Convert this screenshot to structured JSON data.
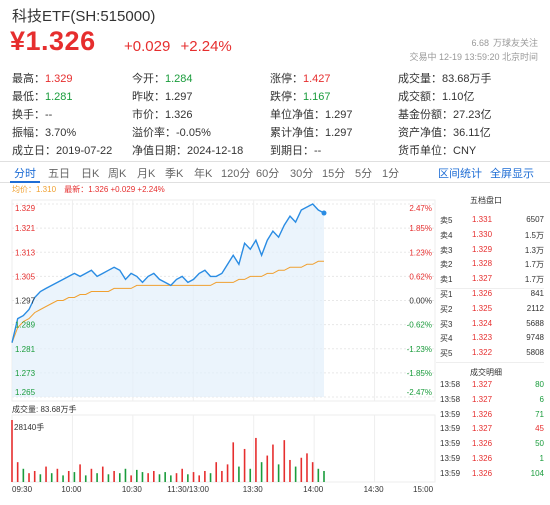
{
  "header": {
    "title": "科技ETF(SH:515000)",
    "price": "¥1.326",
    "change": "+0.029",
    "change_pct": "+2.24%",
    "followers": "6.68",
    "followers_label": "万球友关注",
    "time_info": "交易中 12-19 13:59:20 北京时间"
  },
  "stats": [
    [
      {
        "label": "最高：",
        "value": "1.329",
        "color": "red"
      },
      {
        "label": "今开：",
        "value": "1.284",
        "color": "green"
      },
      {
        "label": "涨停：",
        "value": "1.427",
        "color": "red"
      },
      {
        "label": "成交量：",
        "value": "83.68万手",
        "color": "dark"
      }
    ],
    [
      {
        "label": "最低：",
        "value": "1.281",
        "color": "green"
      },
      {
        "label": "昨收：",
        "value": "1.297",
        "color": "dark"
      },
      {
        "label": "跌停：",
        "value": "1.167",
        "color": "green"
      },
      {
        "label": "成交额：",
        "value": "1.10亿",
        "color": "dark"
      }
    ],
    [
      {
        "label": "换手：",
        "value": "--",
        "color": "dark"
      },
      {
        "label": "市价：",
        "value": "1.326",
        "color": "dark"
      },
      {
        "label": "单位净值：",
        "value": "1.297",
        "color": "dark"
      },
      {
        "label": "基金份额：",
        "value": "27.23亿",
        "color": "dark"
      }
    ],
    [
      {
        "label": "振幅：",
        "value": "3.70%",
        "color": "dark"
      },
      {
        "label": "溢价率：",
        "value": "-0.05%",
        "color": "dark"
      },
      {
        "label": "累计净值：",
        "value": "1.297",
        "color": "dark"
      },
      {
        "label": "资产净值：",
        "value": "36.11亿",
        "color": "dark"
      }
    ],
    [
      {
        "label": "成立日：",
        "value": "2019-07-22",
        "color": "dark"
      },
      {
        "label": "净值日期：",
        "value": "2024-12-18",
        "color": "dark"
      },
      {
        "label": "到期日：",
        "value": "--",
        "color": "dark"
      },
      {
        "label": "货币单位：",
        "value": "CNY",
        "color": "dark"
      }
    ]
  ],
  "tabs": [
    "分时",
    "五日",
    "日K",
    "周K",
    "月K",
    "季K",
    "年K",
    "120分",
    "60分",
    "30分",
    "15分",
    "5分",
    "1分"
  ],
  "tab_links": [
    "区间统计",
    "全屏显示"
  ],
  "legend": {
    "avg": "均价：1.310",
    "latest": "最新：1.326 +0.029 +2.24%"
  },
  "chart_data": {
    "type": "line",
    "y_ticks": [
      "1.329",
      "1.321",
      "1.313",
      "1.305",
      "1.297",
      "1.289",
      "1.281",
      "1.273",
      "1.265"
    ],
    "pct_ticks": [
      "2.47%",
      "1.85%",
      "1.23%",
      "0.62%",
      "0.00%",
      "-0.62%",
      "-1.23%",
      "-1.85%",
      "-2.47%"
    ],
    "ylim": [
      1.265,
      1.329
    ],
    "prev_close": 1.297,
    "x_ticks": [
      "09:30",
      "10:00",
      "10:30",
      "11:30/13:00",
      "13:30",
      "14:00",
      "14:30",
      "15:00"
    ],
    "series": [
      {
        "values": [
          1.283,
          1.291,
          1.292,
          1.294,
          1.298,
          1.3,
          1.301,
          1.302,
          1.303,
          1.304,
          1.305,
          1.306,
          1.305,
          1.306,
          1.307,
          1.305,
          1.306,
          1.307,
          1.308,
          1.307,
          1.304,
          1.306,
          1.305,
          1.303,
          1.305,
          1.306,
          1.304,
          1.303,
          1.302,
          1.304,
          1.305,
          1.303,
          1.304,
          1.306,
          1.307,
          1.305,
          1.305,
          1.306,
          1.309,
          1.312,
          1.309,
          1.316,
          1.314,
          1.317,
          1.312,
          1.317,
          1.32,
          1.318,
          1.322,
          1.325,
          1.323,
          1.327,
          1.328,
          1.329,
          1.327,
          1.326
        ]
      },
      {
        "values": [
          1.283,
          1.288,
          1.29,
          1.291,
          1.293,
          1.294,
          1.295,
          1.296,
          1.297,
          1.297,
          1.298,
          1.298,
          1.299,
          1.299,
          1.3,
          1.3,
          1.3,
          1.3,
          1.301,
          1.301,
          1.301,
          1.301,
          1.302,
          1.302,
          1.302,
          1.302,
          1.302,
          1.302,
          1.302,
          1.302,
          1.302,
          1.302,
          1.302,
          1.302,
          1.302,
          1.302,
          1.303,
          1.303,
          1.303,
          1.303,
          1.304,
          1.304,
          1.305,
          1.305,
          1.305,
          1.306,
          1.306,
          1.307,
          1.307,
          1.308,
          1.308,
          1.308,
          1.309,
          1.309,
          1.31,
          1.31
        ]
      }
    ],
    "volume_label": "成交量: 83.68万手",
    "volume_max_label": "28140手",
    "volume_max": 28140,
    "volumes": [
      28140,
      9000,
      6000,
      4000,
      5000,
      3500,
      7000,
      4000,
      6000,
      3000,
      5000,
      4500,
      8000,
      3000,
      6000,
      4000,
      7000,
      3500,
      5000,
      4000,
      6000,
      3000,
      5500,
      4500,
      4000,
      5000,
      3500,
      4500,
      3000,
      4000,
      6000,
      3500,
      4500,
      3000,
      5000,
      4000,
      9000,
      5000,
      8000,
      18000,
      7000,
      15000,
      6000,
      20000,
      9000,
      12000,
      17000,
      8000,
      19000,
      10000,
      7000,
      11000,
      13000,
      9000,
      6000,
      5000
    ],
    "volume_up": [
      true,
      true,
      false,
      true,
      true,
      false,
      true,
      false,
      true,
      false,
      true,
      false,
      true,
      false,
      true,
      false,
      true,
      false,
      true,
      false,
      false,
      true,
      false,
      false,
      true,
      true,
      false,
      false,
      false,
      true,
      true,
      false,
      true,
      true,
      true,
      false,
      true,
      true,
      true,
      true,
      false,
      true,
      false,
      true,
      false,
      true,
      true,
      false,
      true,
      true,
      false,
      true,
      true,
      true,
      false,
      false
    ],
    "colors": {
      "price": "#2a8ce3",
      "avg": "#f0a030",
      "up": "#e62e2e",
      "down": "#1a9c3c"
    }
  },
  "order_book": {
    "title": "五档盘口",
    "rows": [
      {
        "label": "卖5",
        "price": "1.331",
        "vol": "6507",
        "color": "red"
      },
      {
        "label": "卖4",
        "price": "1.330",
        "vol": "1.5万",
        "color": "red"
      },
      {
        "label": "卖3",
        "price": "1.329",
        "vol": "1.3万",
        "color": "red"
      },
      {
        "label": "卖2",
        "price": "1.328",
        "vol": "1.7万",
        "color": "red"
      },
      {
        "label": "卖1",
        "price": "1.327",
        "vol": "1.7万",
        "color": "red"
      },
      {
        "label": "买1",
        "price": "1.326",
        "vol": "841",
        "color": "red"
      },
      {
        "label": "买2",
        "price": "1.325",
        "vol": "2112",
        "color": "red"
      },
      {
        "label": "买3",
        "price": "1.324",
        "vol": "5688",
        "color": "red"
      },
      {
        "label": "买4",
        "price": "1.323",
        "vol": "9748",
        "color": "red"
      },
      {
        "label": "买5",
        "price": "1.322",
        "vol": "5808",
        "color": "red"
      }
    ],
    "trades_title": "成交明细",
    "trades": [
      {
        "time": "13:58",
        "price": "1.327",
        "vol": "80",
        "color": "red",
        "vcolor": "green"
      },
      {
        "time": "13:58",
        "price": "1.327",
        "vol": "6",
        "color": "red",
        "vcolor": "green"
      },
      {
        "time": "13:59",
        "price": "1.326",
        "vol": "71",
        "color": "red",
        "vcolor": "green"
      },
      {
        "time": "13:59",
        "price": "1.327",
        "vol": "45",
        "color": "red",
        "vcolor": "red"
      },
      {
        "time": "13:59",
        "price": "1.326",
        "vol": "50",
        "color": "red",
        "vcolor": "green"
      },
      {
        "time": "13:59",
        "price": "1.326",
        "vol": "1",
        "color": "red",
        "vcolor": "green"
      },
      {
        "time": "13:59",
        "price": "1.326",
        "vol": "104",
        "color": "red",
        "vcolor": "green"
      }
    ]
  }
}
